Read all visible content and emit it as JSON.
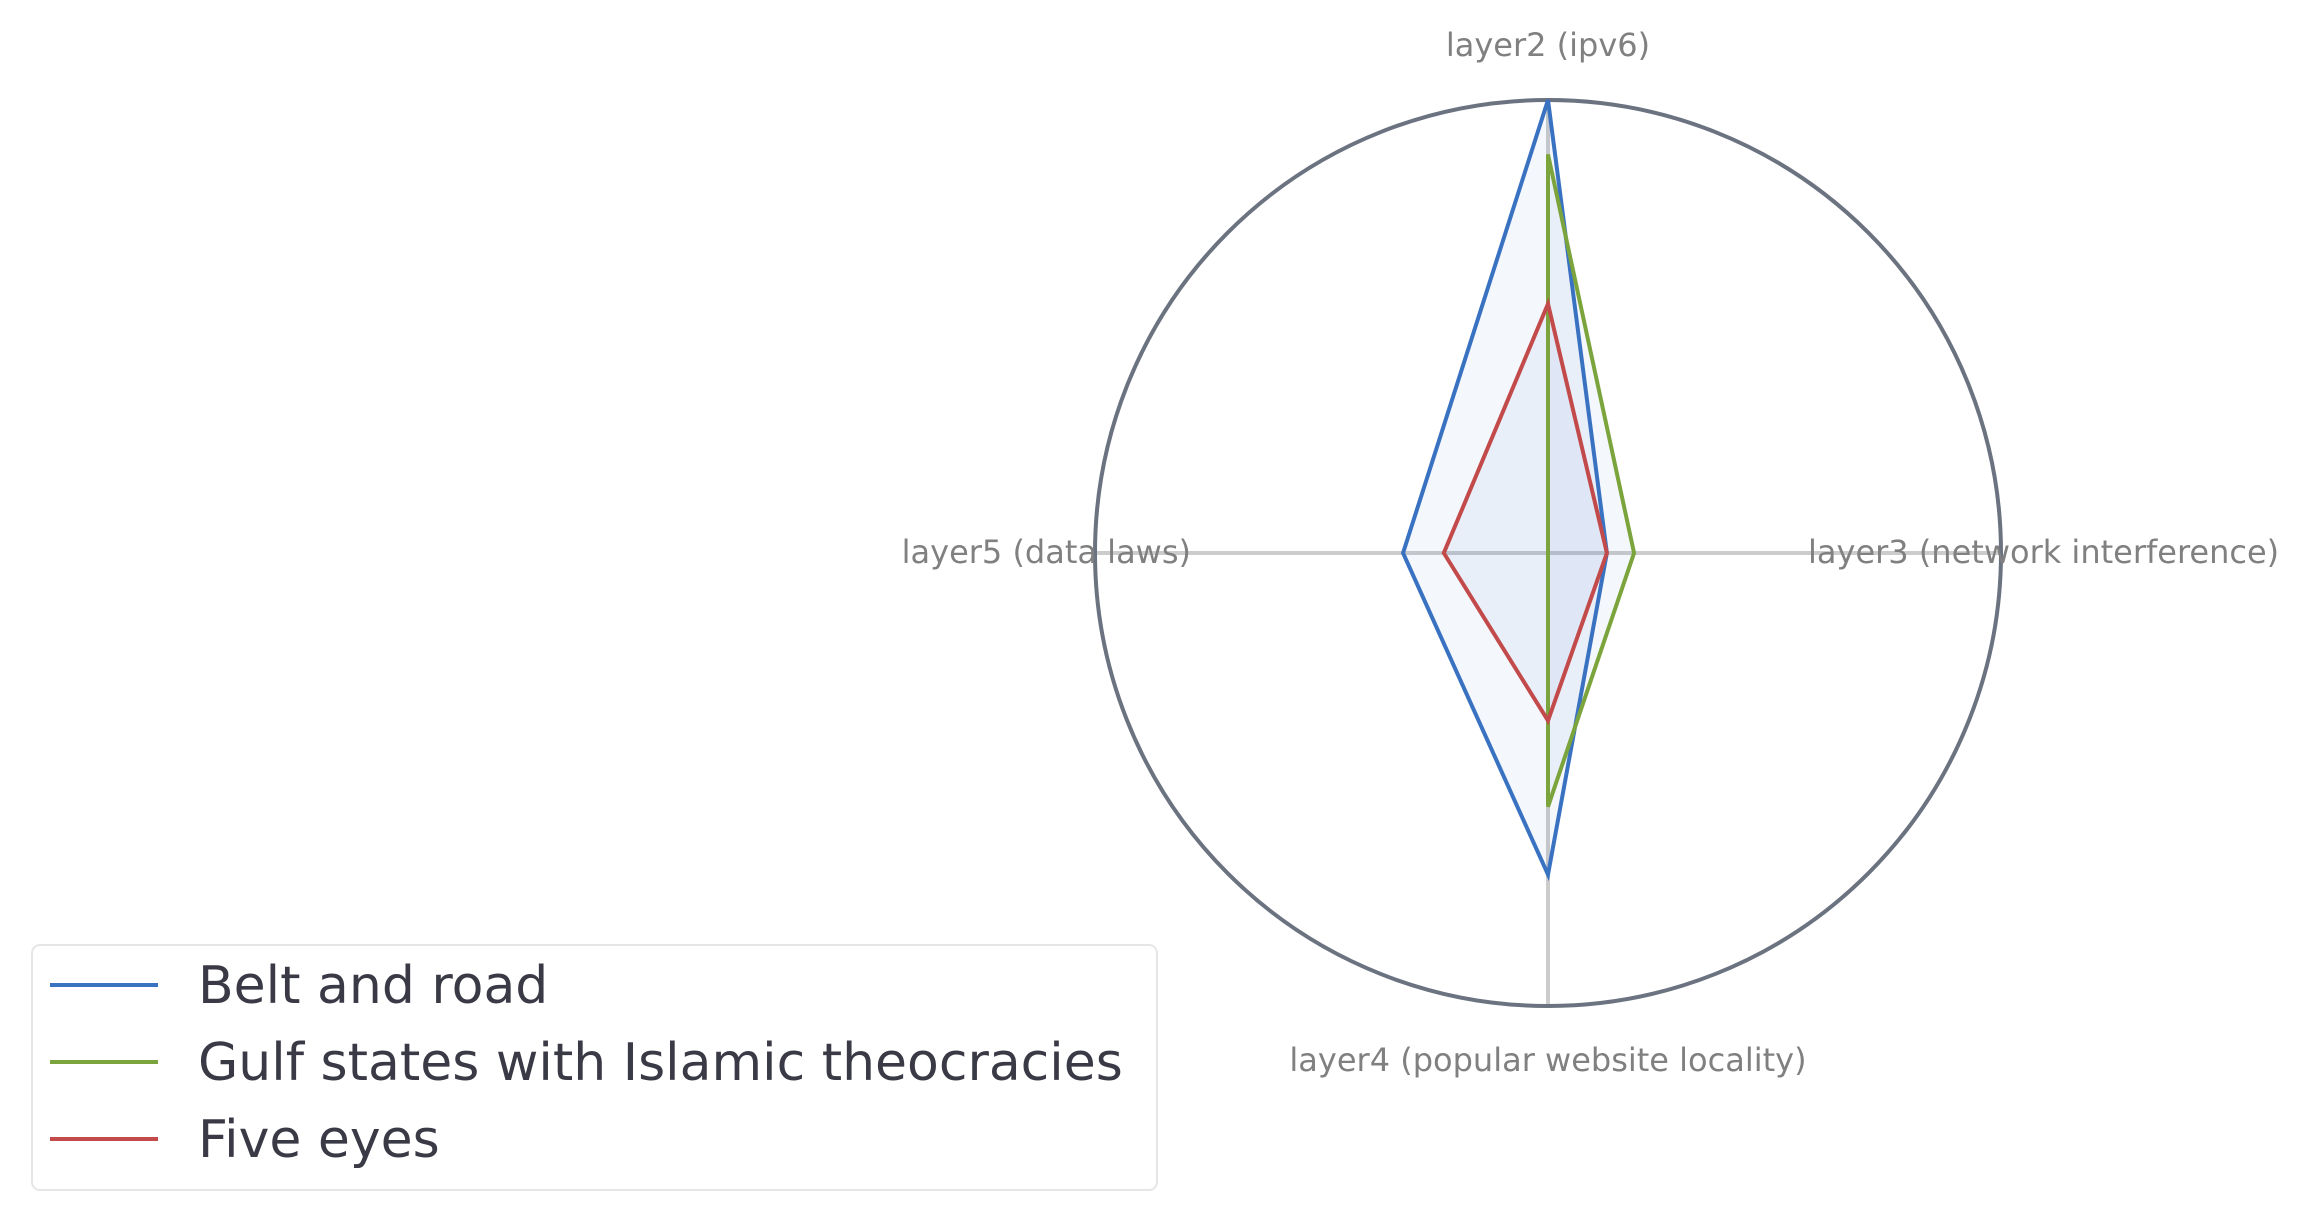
{
  "chart_data": {
    "type": "radar",
    "title": "",
    "axes": [
      "layer2 (ipv6)",
      "layer3 (network interference)",
      "layer4 (popular website locality)",
      "layer5 (data laws)"
    ],
    "range": [
      0,
      1
    ],
    "grid": true,
    "legend_position": "lower-left",
    "series": [
      {
        "name": "Belt and road",
        "values": [
          1.0,
          0.13,
          0.71,
          0.32
        ],
        "color": "#3a72c2"
      },
      {
        "name": "Gulf states with Islamic theocracies",
        "values": [
          0.88,
          0.19,
          0.56,
          0.0
        ],
        "color": "#7ca43c"
      },
      {
        "name": "Five eyes",
        "values": [
          0.55,
          0.13,
          0.37,
          0.23
        ],
        "color": "#c24a4a"
      }
    ],
    "colors": {
      "outer_ring": "#6b7280",
      "spokes": "#cccccc",
      "fill": "#3a72c2"
    }
  }
}
